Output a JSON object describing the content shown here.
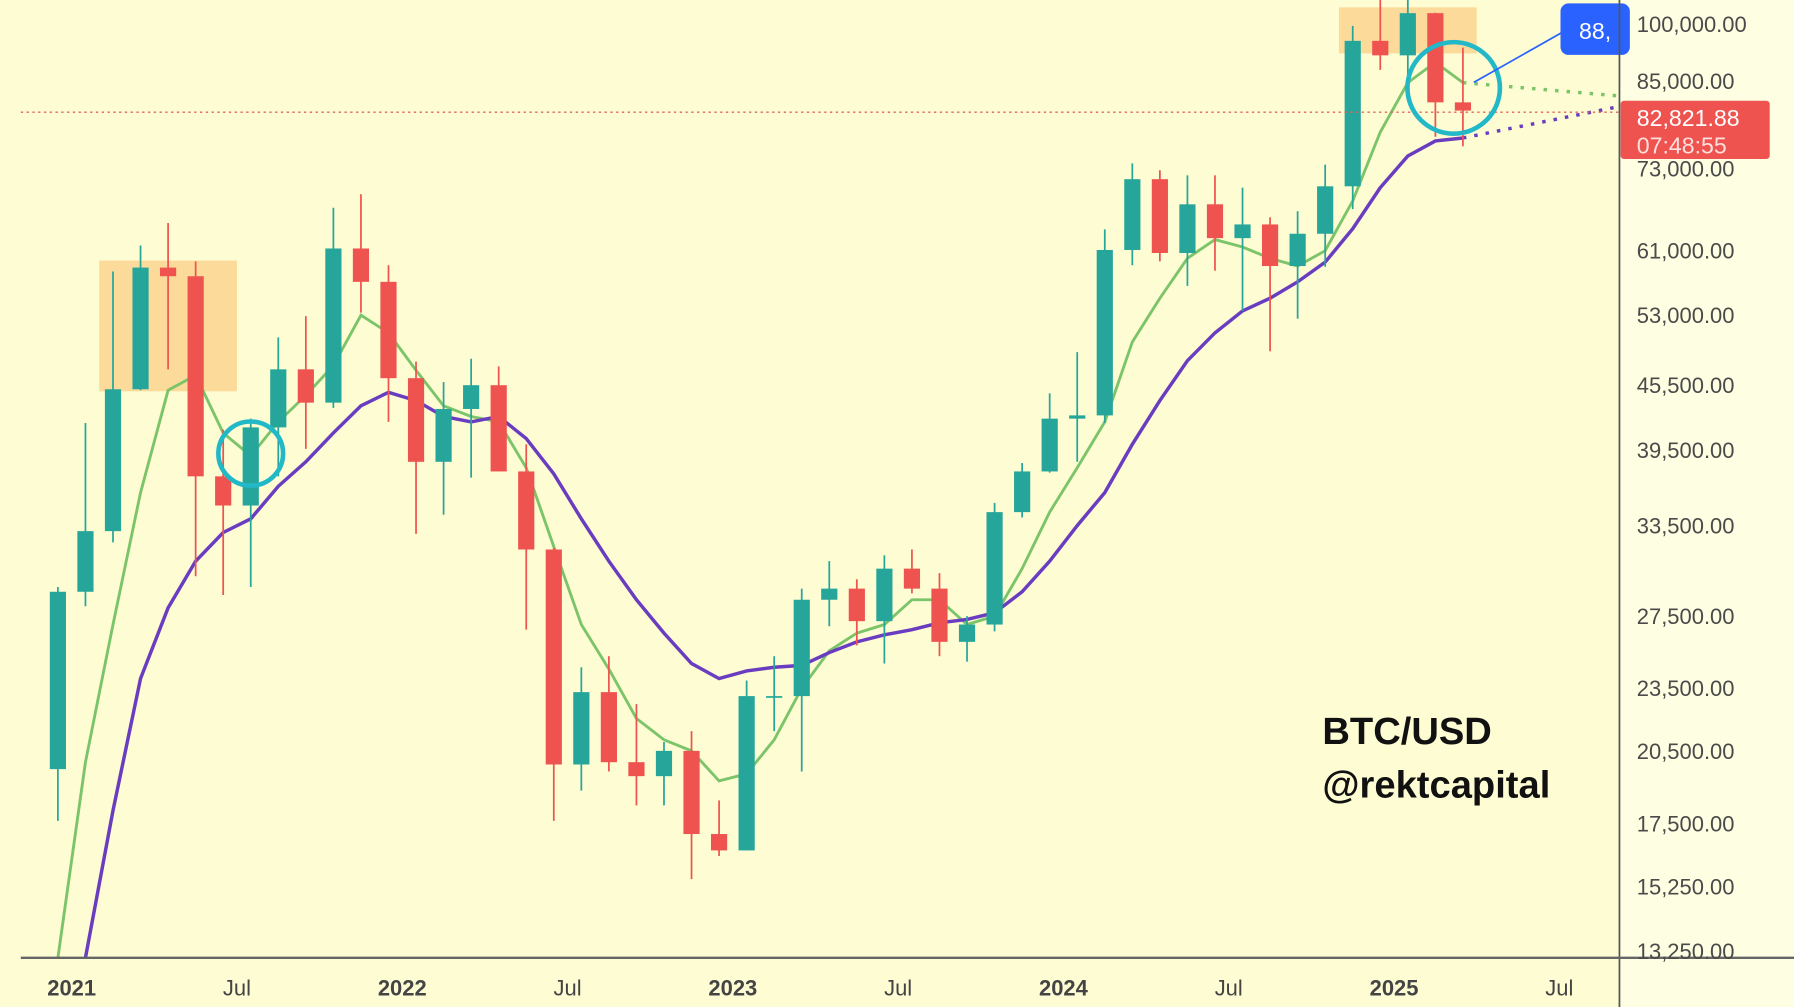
{
  "chart_data": {
    "type": "candlestick",
    "symbol_watermark": [
      "BTC/USD",
      "@rektcapital"
    ],
    "scale": "log",
    "ylim": [
      13250,
      105000
    ],
    "y_ticks": [
      100000,
      85000,
      73000,
      61000,
      53000,
      45500,
      39500,
      33500,
      27500,
      23500,
      20500,
      17500,
      15250,
      13250
    ],
    "y_tick_labels": [
      "100,000.00",
      "85,000.00",
      "73,000.00",
      "61,000.00",
      "53,000.00",
      "45,500.00",
      "39,500.00",
      "33,500.00",
      "27,500.00",
      "23,500.00",
      "20,500.00",
      "17,500.00",
      "15,250.00",
      "13,250.00"
    ],
    "x_ticks": [
      {
        "date": "2021-01",
        "label": "2021",
        "bold": true
      },
      {
        "date": "2021-07",
        "label": "Jul",
        "bold": false
      },
      {
        "date": "2022-01",
        "label": "2022",
        "bold": true
      },
      {
        "date": "2022-07",
        "label": "Jul",
        "bold": false
      },
      {
        "date": "2023-01",
        "label": "2023",
        "bold": true
      },
      {
        "date": "2023-07",
        "label": "Jul",
        "bold": false
      },
      {
        "date": "2024-01",
        "label": "2024",
        "bold": true
      },
      {
        "date": "2024-07",
        "label": "Jul",
        "bold": false
      },
      {
        "date": "2025-01",
        "label": "2025",
        "bold": true
      },
      {
        "date": "2025-07",
        "label": "Jul",
        "bold": false
      }
    ],
    "grid": false,
    "candles": [
      [
        "2020-12",
        19700,
        29300,
        17600,
        29000
      ],
      [
        "2021-01",
        29000,
        41900,
        28100,
        33100
      ],
      [
        "2021-02",
        33100,
        58300,
        32300,
        45100
      ],
      [
        "2021-03",
        45100,
        61700,
        45000,
        58800
      ],
      [
        "2021-04",
        58800,
        64800,
        47100,
        57700
      ],
      [
        "2021-05",
        57700,
        59600,
        30000,
        37300
      ],
      [
        "2021-06",
        37300,
        41300,
        28800,
        35000
      ],
      [
        "2021-07",
        35000,
        42300,
        29300,
        41500
      ],
      [
        "2021-08",
        41500,
        50500,
        37300,
        47100
      ],
      [
        "2021-09",
        47100,
        52900,
        39600,
        43800
      ],
      [
        "2021-10",
        43800,
        67000,
        43300,
        61300
      ],
      [
        "2021-11",
        61300,
        69000,
        53300,
        57000
      ],
      [
        "2021-12",
        57000,
        59100,
        42000,
        46200
      ],
      [
        "2022-01",
        46200,
        47900,
        32900,
        38500
      ],
      [
        "2022-02",
        38500,
        45800,
        34300,
        43200
      ],
      [
        "2022-03",
        43200,
        48200,
        37200,
        45500
      ],
      [
        "2022-04",
        45500,
        47400,
        37700,
        37700
      ],
      [
        "2022-05",
        37700,
        40000,
        26700,
        31800
      ],
      [
        "2022-06",
        31800,
        31900,
        17600,
        19900
      ],
      [
        "2022-07",
        19900,
        24600,
        18800,
        23300
      ],
      [
        "2022-08",
        23300,
        25200,
        19600,
        20000
      ],
      [
        "2022-09",
        20000,
        22700,
        18200,
        19400
      ],
      [
        "2022-10",
        19400,
        20900,
        18200,
        20500
      ],
      [
        "2022-11",
        20500,
        21400,
        15500,
        17100
      ],
      [
        "2022-12",
        17100,
        18400,
        16300,
        16500
      ],
      [
        "2023-01",
        16500,
        23900,
        16500,
        23100
      ],
      [
        "2023-02",
        23100,
        25200,
        21400,
        23100
      ],
      [
        "2023-03",
        23100,
        29200,
        19600,
        28500
      ],
      [
        "2023-04",
        28500,
        31000,
        26900,
        29200
      ],
      [
        "2023-05",
        29200,
        29800,
        25800,
        27200
      ],
      [
        "2023-06",
        27200,
        31400,
        24800,
        30500
      ],
      [
        "2023-07",
        30500,
        31800,
        28900,
        29200
      ],
      [
        "2023-08",
        29200,
        30200,
        25200,
        26000
      ],
      [
        "2023-09",
        26000,
        27500,
        24900,
        27000
      ],
      [
        "2023-10",
        27000,
        35200,
        26600,
        34500
      ],
      [
        "2023-11",
        34500,
        38400,
        34100,
        37700
      ],
      [
        "2023-12",
        37700,
        44700,
        37600,
        42300
      ],
      [
        "2024-01",
        42300,
        48900,
        38500,
        42600
      ],
      [
        "2024-02",
        42600,
        63900,
        41900,
        61100
      ],
      [
        "2024-03",
        61100,
        73800,
        59100,
        71300
      ],
      [
        "2024-04",
        71300,
        72700,
        59600,
        60700
      ],
      [
        "2024-05",
        60700,
        71900,
        56500,
        67500
      ],
      [
        "2024-06",
        67500,
        71900,
        58400,
        62700
      ],
      [
        "2024-07",
        62700,
        70000,
        53500,
        64600
      ],
      [
        "2024-08",
        64600,
        65600,
        49000,
        59000
      ],
      [
        "2024-09",
        59000,
        66500,
        52600,
        63300
      ],
      [
        "2024-10",
        63300,
        73600,
        58900,
        70200
      ],
      [
        "2024-11",
        70200,
        99600,
        66800,
        96400
      ],
      [
        "2024-12",
        96400,
        108000,
        90500,
        93400
      ],
      [
        "2025-01",
        93400,
        109300,
        89200,
        102400
      ],
      [
        "2025-02",
        102400,
        102500,
        78200,
        84300
      ],
      [
        "2025-03",
        84300,
        95000,
        76600,
        82800
      ]
    ],
    "series": [
      {
        "color": "#7cc46a",
        "start": "2020-12",
        "values": [
          13000,
          20000,
          27000,
          36000,
          45000,
          46500,
          41000,
          39000,
          42000,
          44500,
          47500,
          53000,
          51000,
          47000,
          43500,
          42500,
          42000,
          38000,
          32000,
          27000,
          24500,
          22000,
          21000,
          20500,
          19200,
          19500,
          21000,
          23500,
          25500,
          26500,
          27000,
          28500,
          28500,
          27000,
          27500,
          30500,
          34500,
          38000,
          42000,
          50000,
          55000,
          60000,
          62500,
          61500,
          60000,
          59000,
          61000,
          68000,
          79000,
          88000,
          92000,
          88000
        ],
        "projection_to": {
          "date": "2025-08",
          "value": 85500
        }
      },
      {
        "color": "#6a3dc0",
        "start": "2021-01",
        "values": [
          12500,
          18000,
          24000,
          28000,
          31000,
          33000,
          34000,
          36500,
          38500,
          41000,
          43500,
          44800,
          44000,
          42500,
          42000,
          42500,
          40500,
          37500,
          34000,
          31000,
          28500,
          26500,
          24800,
          24000,
          24400,
          24600,
          24700,
          25400,
          26000,
          26400,
          26700,
          27100,
          27300,
          27700,
          29000,
          31000,
          33500,
          36000,
          40000,
          44000,
          48000,
          51000,
          53500,
          55000,
          57000,
          59500,
          64000,
          70000,
          75000,
          77500,
          78000
        ],
        "projection_to": {
          "date": "2025-08",
          "value": 83500
        }
      }
    ],
    "highlight_zones": [
      {
        "from": "2021-02",
        "to": "2021-06",
        "low": 44900,
        "high": 59700,
        "color": "#fcd58f"
      },
      {
        "from": "2024-11",
        "to": "2025-03",
        "low": 93800,
        "high": 103700,
        "color": "#fcd58f"
      }
    ],
    "circles": [
      {
        "date": "2021-07",
        "value": 39200,
        "color": "#22b8c8"
      },
      {
        "date": "2025-03",
        "value": 87000,
        "color": "#22b8c8"
      }
    ],
    "colors": {
      "up": "#26a69a",
      "down": "#ef5350",
      "background": "#fdfcd3",
      "axis_bg": "#fefee2"
    },
    "last_price": {
      "value": 82821.88,
      "label": "82,821.88",
      "countdown": "07:48:55",
      "color": "#ef5350"
    },
    "callout": {
      "label": "88,",
      "color": "#2962ff"
    }
  }
}
